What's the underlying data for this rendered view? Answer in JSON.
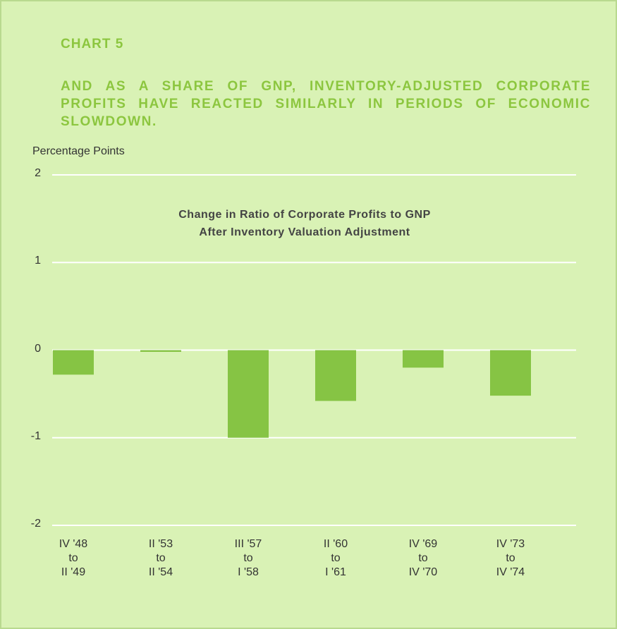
{
  "chart_data": {
    "type": "bar",
    "title": "CHART 5",
    "subtitle": "AND AS A SHARE OF GNP, INVENTORY-ADJUSTED CORPORATE PROFITS HAVE REACTED SIMILARLY IN PERIODS OF ECONOMIC SLOWDOWN.",
    "y_label": "Percentage Points",
    "annotation": "Change in Ratio of Corporate Profits to GNP\nAfter Inventory Valuation Adjustment",
    "categories": [
      "IV '48\nto\nII '49",
      "II '53\nto\nII '54",
      "III '57\nto\nI '58",
      "II '60\nto\nI '61",
      "IV '69\nto\nIV '70",
      "IV '73\nto\nIV '74"
    ],
    "values": [
      -0.28,
      -0.02,
      -1.0,
      -0.58,
      -0.2,
      -0.52
    ],
    "color": "#86c444",
    "ylim": [
      -2,
      2
    ],
    "yticks": [
      -2,
      -1,
      0,
      1,
      2
    ],
    "grid": true
  }
}
